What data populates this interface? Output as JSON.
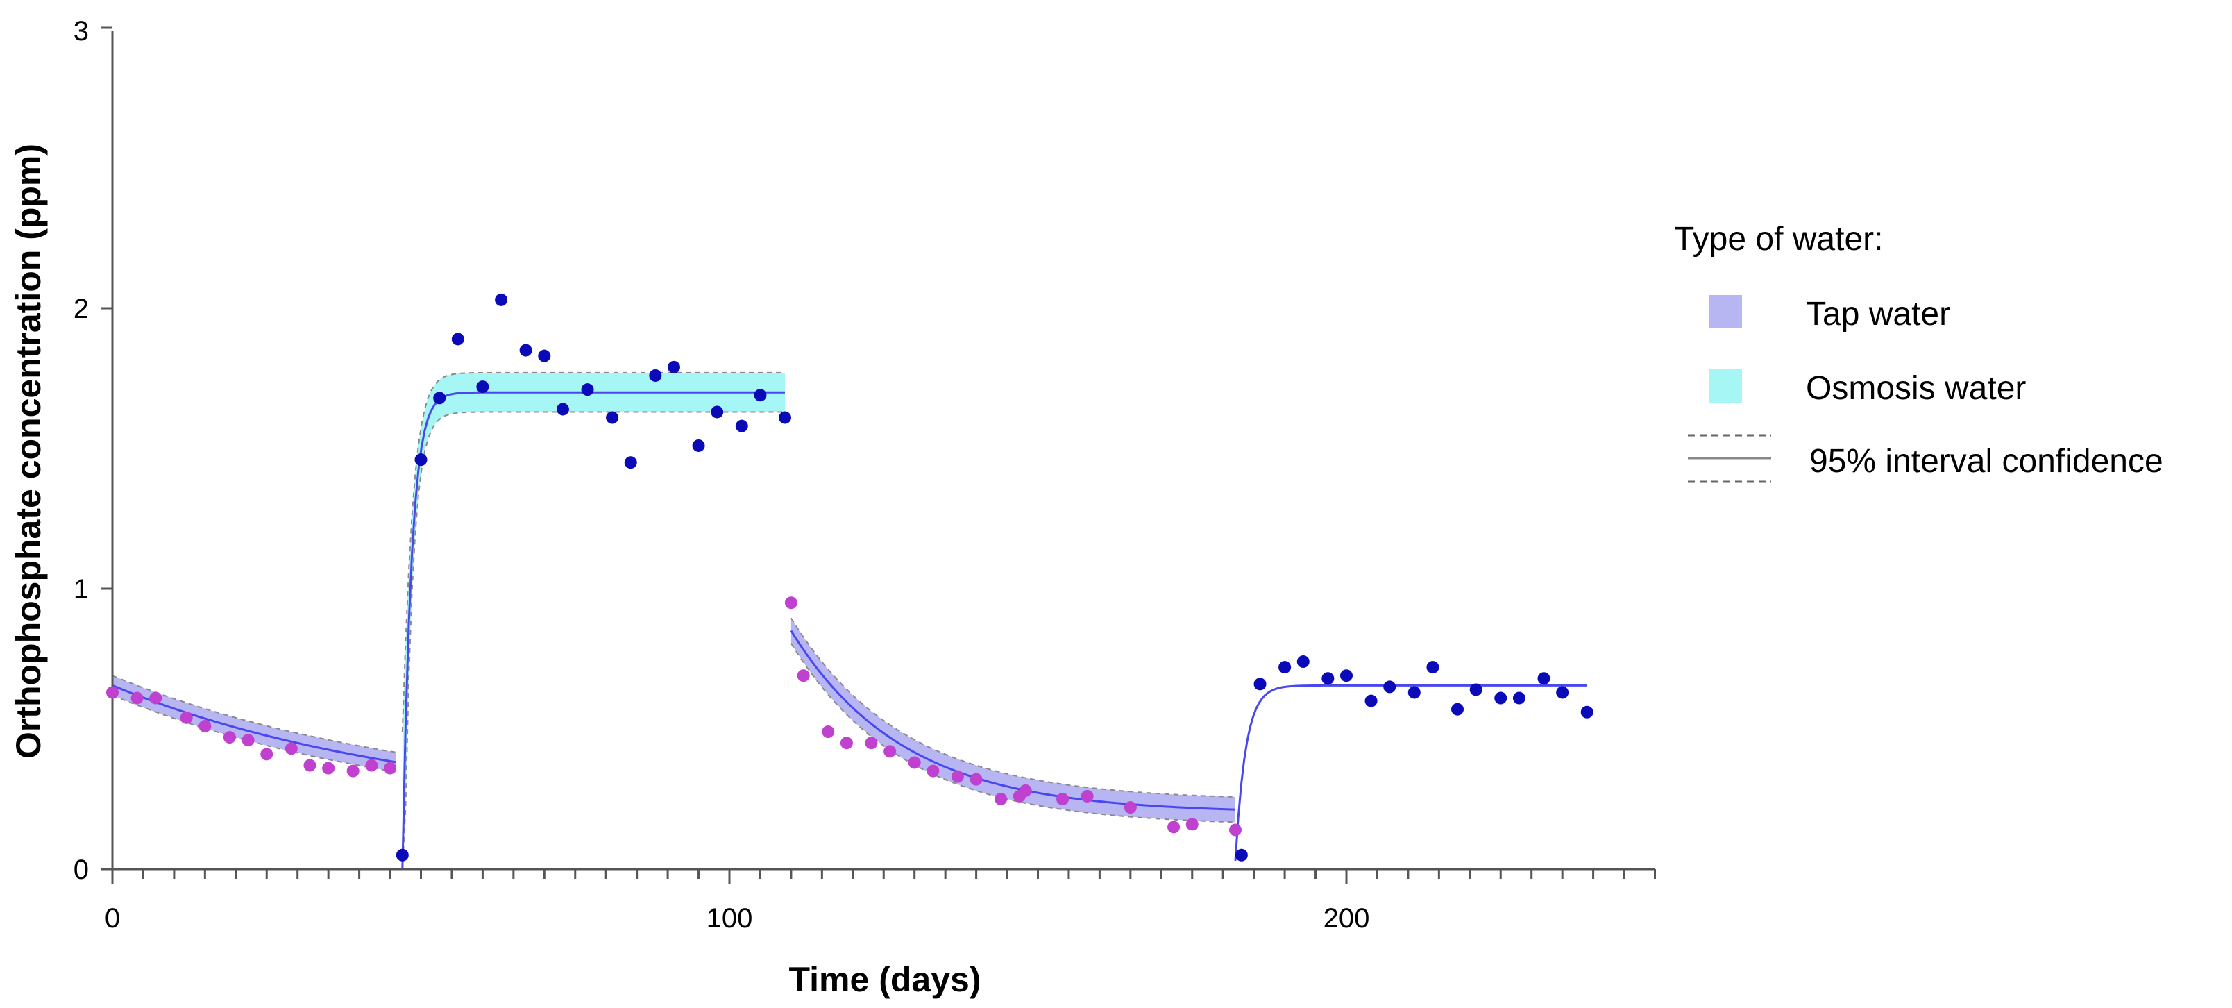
{
  "chart_data": {
    "type": "scatter",
    "xlabel": "Time (days)",
    "ylabel": "Orthophosphate concentration (ppm)",
    "xlim": [
      0,
      250
    ],
    "ylim": [
      0,
      3
    ],
    "x_ticks": [
      "0",
      "100",
      "200"
    ],
    "y_ticks": [
      "0",
      "1",
      "2",
      "3"
    ],
    "grid": false,
    "legend_position": "right",
    "legend": {
      "title": "Type of water:",
      "entries": [
        "Tap water",
        "Osmosis water",
        "95% interval confidence"
      ]
    },
    "colors": {
      "tap_points": "#c040d0",
      "osmosis_points": "#0a0ab8",
      "tap_band": "#b8b6f2",
      "osmosis_band": "#a6f6f6",
      "fit_line": "#4848ee",
      "ci_dashes": "#8a8a8a"
    },
    "series": [
      {
        "name": "Tap water",
        "x": [
          0,
          4,
          7,
          12,
          15,
          19,
          22,
          25,
          29,
          32,
          35,
          39,
          42,
          45
        ],
        "y": [
          0.63,
          0.61,
          0.61,
          0.54,
          0.51,
          0.47,
          0.46,
          0.41,
          0.43,
          0.37,
          0.36,
          0.35,
          0.37,
          0.36
        ]
      },
      {
        "name": "Osmosis water",
        "x": [
          47,
          50,
          53,
          56,
          60,
          63,
          67,
          70,
          73,
          77,
          81,
          84,
          88,
          91,
          95,
          98,
          102,
          105,
          109
        ],
        "y": [
          0.05,
          1.46,
          1.68,
          1.89,
          1.72,
          2.03,
          1.85,
          1.83,
          1.64,
          1.71,
          1.61,
          1.45,
          1.76,
          1.79,
          1.51,
          1.63,
          1.58,
          1.69,
          1.61
        ]
      },
      {
        "name": "Tap water",
        "x": [
          110,
          112,
          116,
          119,
          123,
          126,
          130,
          133,
          137,
          140,
          144,
          147,
          148,
          154,
          158,
          165,
          172,
          175,
          182
        ],
        "y": [
          0.95,
          0.69,
          0.49,
          0.45,
          0.45,
          0.42,
          0.38,
          0.35,
          0.33,
          0.32,
          0.25,
          0.26,
          0.28,
          0.25,
          0.26,
          0.22,
          0.15,
          0.16,
          0.14
        ]
      },
      {
        "name": "Osmosis water",
        "x": [
          183,
          186,
          190,
          193,
          197,
          200,
          204,
          207,
          211,
          214,
          218,
          221,
          225,
          228,
          232,
          235,
          239
        ],
        "y": [
          0.05,
          0.66,
          0.72,
          0.74,
          0.68,
          0.69,
          0.6,
          0.65,
          0.63,
          0.72,
          0.57,
          0.64,
          0.61,
          0.61,
          0.68,
          0.63,
          0.56
        ]
      }
    ],
    "fits": [
      {
        "water": "Tap water",
        "x0": 0,
        "x1": 46,
        "plateau": 0.2,
        "start": 0.655,
        "k": 0.02,
        "ci": 0.035
      },
      {
        "water": "Osmosis water",
        "x0": 47,
        "x1": 109,
        "plateau": 1.7,
        "start": 0.0,
        "k": 0.7,
        "ci": 0.07
      },
      {
        "water": "Tap water",
        "x0": 110,
        "x1": 182,
        "plateau": 0.2,
        "start": 0.85,
        "k": 0.055,
        "ci": 0.045
      },
      {
        "water": "Osmosis water",
        "x0": 182,
        "x1": 239,
        "plateau": 0.655,
        "start": 0.03,
        "k": 0.6,
        "ci": 0.0
      }
    ]
  }
}
